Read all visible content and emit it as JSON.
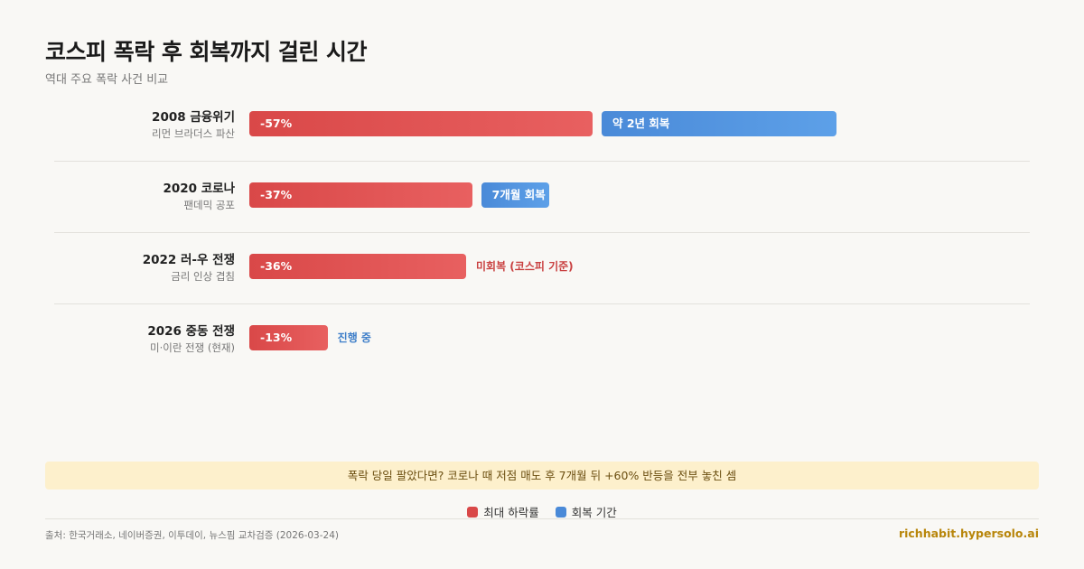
{
  "header": {
    "title": "코스피 폭락 후 회복까지 걸린 시간",
    "subtitle": "역대 주요 폭락 사건 비교"
  },
  "chart_data": {
    "type": "bar",
    "orientation": "horizontal",
    "categories": [
      "2008 금융위기",
      "2020 코로나",
      "2022 러-우 전쟁",
      "2026 중동 전쟁"
    ],
    "category_details": [
      "리먼 브라더스 파산",
      "팬데믹 공포",
      "금리 인상 겹침",
      "미·이란 전쟁 (현재)"
    ],
    "series": [
      {
        "name": "최대 하락률",
        "values": [
          -57,
          -37,
          -36,
          -13
        ],
        "labels": [
          "-57%",
          "-37%",
          "-36%",
          "-13%"
        ]
      },
      {
        "name": "회복 기간",
        "values_months": [
          24,
          7,
          null,
          null
        ],
        "labels": [
          "약 2년 회복",
          "7개월 회복",
          "",
          ""
        ]
      }
    ],
    "notes": [
      "",
      "",
      "미회복 (코스피 기준)",
      "진행 중"
    ],
    "legend_position": "bottom-center",
    "grid": false
  },
  "colors": {
    "drop": "#d94848",
    "recovery": "#4a8ad8",
    "note_unrecovered": "#c94040",
    "note_ongoing": "#3f7fc9"
  },
  "callout": "폭락 당일 팔았다면? 코로나 때 저점 매도 후 7개월 뒤 +60% 반등을 전부 놓친 셈",
  "legend": {
    "drop": "최대 하락률",
    "recovery": "회복 기간"
  },
  "footer": {
    "source": "출처: 한국거래소, 네이버증권, 이투데이, 뉴스핌 교차검증 (2026-03-24)",
    "brand": "richhabit.hypersolo.ai"
  }
}
